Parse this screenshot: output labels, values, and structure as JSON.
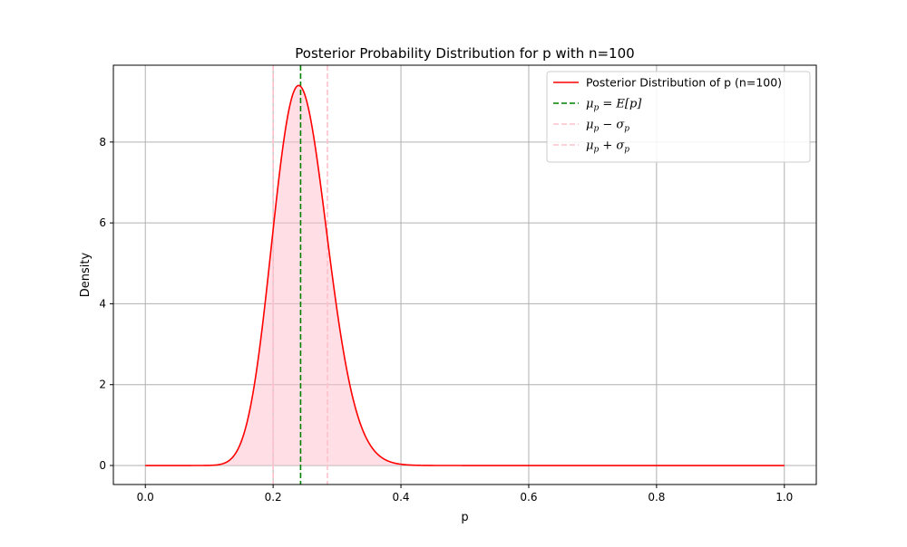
{
  "chart_data": {
    "type": "line",
    "title": "Posterior Probability Distribution for p with n=100",
    "xlabel": "p",
    "ylabel": "Density",
    "xlim": [
      -0.05,
      1.05
    ],
    "ylim": [
      -0.47,
      9.9
    ],
    "xticks": [
      "0.0",
      "0.2",
      "0.4",
      "0.6",
      "0.8",
      "1.0"
    ],
    "yticks": [
      "0",
      "2",
      "4",
      "6",
      "8"
    ],
    "grid": true,
    "legend_position": "top-right",
    "distribution": {
      "family": "beta",
      "alpha": 25,
      "beta": 77
    },
    "x_range": [
      0.0,
      1.0
    ],
    "shaded_interval": [
      0.2,
      0.285
    ],
    "series": [
      {
        "name": "Posterior Distribution of p (n=100)",
        "color": "#ff0000",
        "style": "solid",
        "peak_x": 0.24,
        "peak_y": 9.4
      }
    ],
    "vlines": [
      {
        "legend_sym": "μ",
        "legend_sub": "p",
        "legend_rest": " = E[p]",
        "x": 0.243,
        "color": "#008000",
        "style": "dashed"
      },
      {
        "legend_sym": "μ",
        "legend_sub": "p",
        "legend_op": " − ",
        "legend_sym2": "σ",
        "legend_sub2": "p",
        "x": 0.2,
        "color": "#ffc0cb",
        "style": "dashed"
      },
      {
        "legend_sym": "μ",
        "legend_sub": "p",
        "legend_op": " + ",
        "legend_sym2": "σ",
        "legend_sub2": "p",
        "x": 0.285,
        "color": "#ffc0cb",
        "style": "dashed"
      }
    ],
    "fill_color": "#ffc0cb"
  }
}
